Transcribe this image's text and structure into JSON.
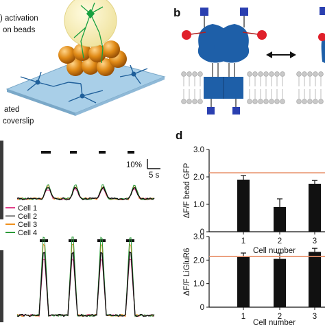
{
  "panel_a": {
    "caption_line1": ") activation",
    "caption_line2": "on beads",
    "caption_bottom1": "ated",
    "caption_bottom2": "coverslip"
  },
  "panel_b": {
    "label": "b"
  },
  "panel_c": {
    "scale_y": "10%",
    "scale_x": "5 s",
    "legend": [
      {
        "name": "Cell 1",
        "color": "#e0408a"
      },
      {
        "name": "Cell 2",
        "color": "#8a8a8a"
      },
      {
        "name": "Cell 3",
        "color": "#f0901c"
      },
      {
        "name": "Cell 4",
        "color": "#2c9a3a"
      }
    ]
  },
  "panel_d": {
    "label": "d"
  },
  "chart_data": [
    {
      "type": "bar",
      "title": "",
      "ylabel": "ΔF/F bead GFP",
      "xlabel": "Cell number",
      "categories": [
        "1",
        "2",
        "3"
      ],
      "values": [
        1.9,
        0.9,
        1.75
      ],
      "errors": [
        0.15,
        0.3,
        0.12
      ],
      "reference_line": 2.15,
      "ylim": [
        0,
        3.0
      ],
      "yticks": [
        "0",
        "1.0",
        "2.0",
        "3.0"
      ],
      "reference_color": "#e8906a"
    },
    {
      "type": "bar",
      "title": "",
      "ylabel": "ΔF/F LiGluR6",
      "xlabel": "Cell number",
      "categories": [
        "1",
        "2",
        "3"
      ],
      "values": [
        2.15,
        2.05,
        2.35
      ],
      "errors": [
        0.15,
        0.25,
        0.15
      ],
      "reference_line": 2.15,
      "ylim": [
        0,
        3.0
      ],
      "yticks": [
        "0",
        "1.0",
        "2.0",
        "3.0"
      ],
      "reference_color": "#e8906a"
    }
  ]
}
